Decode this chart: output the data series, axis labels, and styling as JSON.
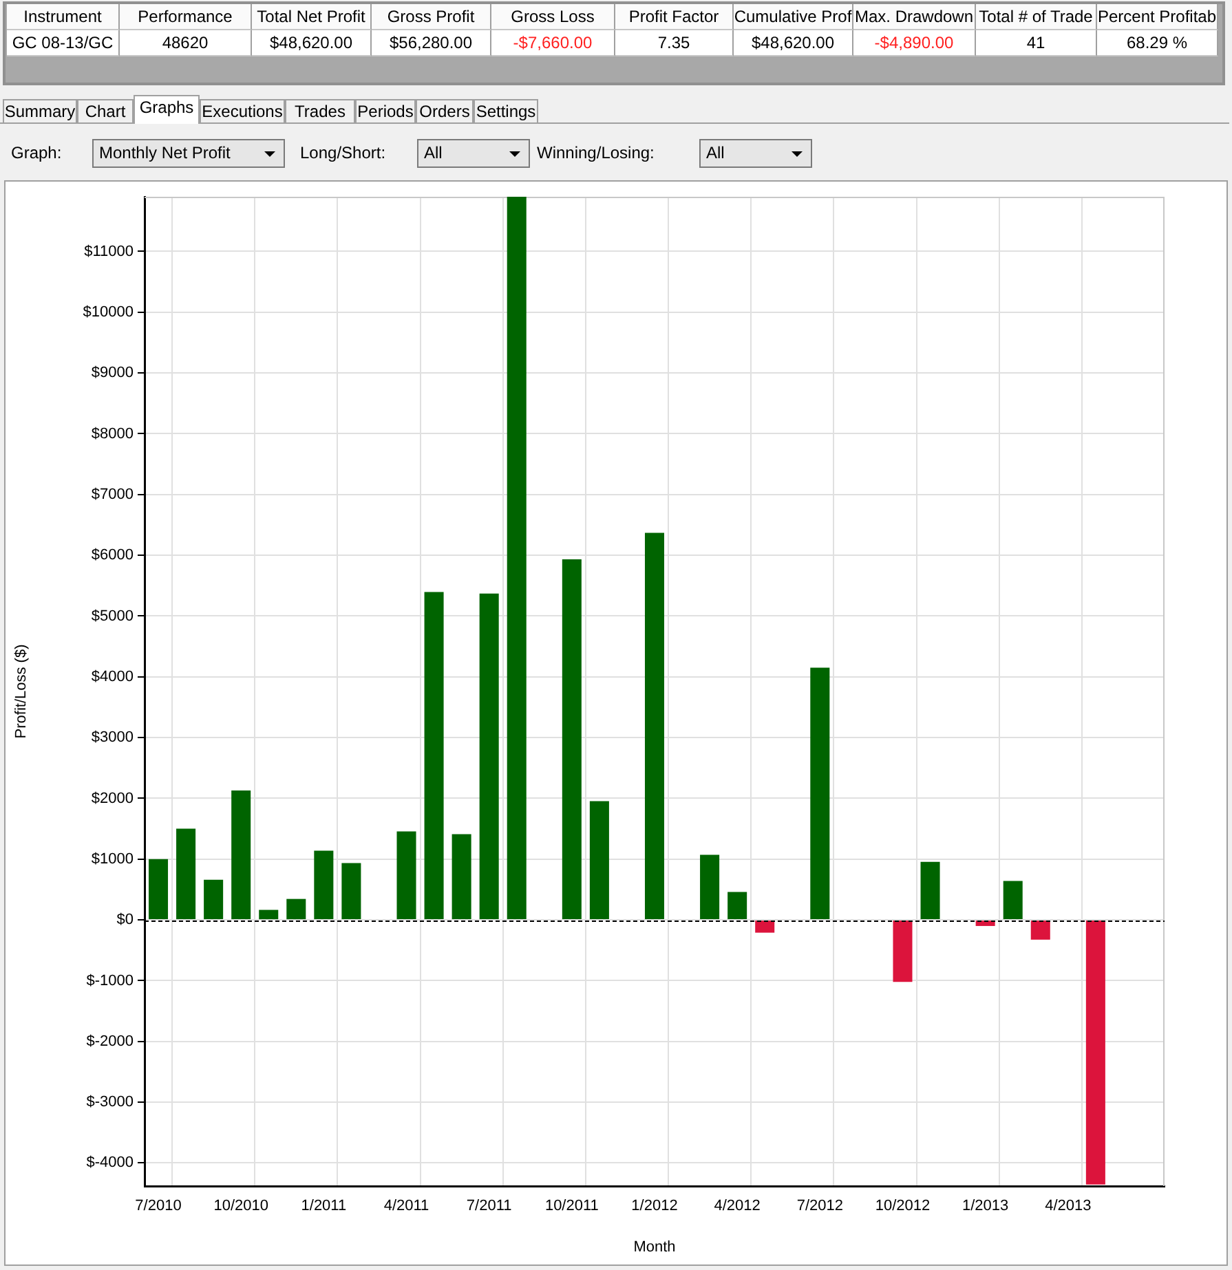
{
  "chart_data": [
    {
      "type": "other",
      "annotations": [
        "Instrument",
        "Performance",
        "Total Net Profit",
        "Gross Profit",
        "Gross Loss",
        "Profit Factor",
        "Cumulative Prof",
        "Max. Drawdown",
        "Total # of Trade",
        "Percent Profitab",
        "GC 08-13/GC",
        "48620",
        "$48,620.00",
        "$56,280.00",
        "-$7,660.00",
        "7.35",
        "$48,620.00",
        "-$4,890.00",
        "41",
        "68.29 %",
        "Summary",
        "Chart",
        "Graphs",
        "Executions",
        "Trades",
        "Periods",
        "Orders",
        "Settings",
        "Graph:",
        "Monthly Net Profit",
        "Long/Short:",
        "All",
        "Winning/Losing:",
        "All"
      ]
    },
    {
      "type": "bar",
      "xlabel": "Month",
      "ylabel": "Profit/Loss ($)",
      "categories": [
        "7/2010",
        null,
        null,
        "10/2010",
        null,
        null,
        "1/2011",
        null,
        null,
        "4/2011",
        null,
        null,
        "7/2011",
        null,
        null,
        "10/2011",
        null,
        null,
        "1/2012",
        null,
        null,
        "4/2012",
        null,
        null,
        "7/2012",
        null,
        null,
        "10/2012",
        null,
        null,
        "1/2013",
        null,
        null,
        "4/2013",
        null,
        null,
        null
      ],
      "values": [
        1000,
        1500,
        660,
        2130,
        165,
        345,
        1140,
        935,
        null,
        1455,
        5395,
        1410,
        5370,
        11900,
        null,
        5935,
        1955,
        null,
        6370,
        null,
        1070,
        460,
        -210,
        null,
        4150,
        null,
        null,
        -1020,
        955,
        null,
        -100,
        640,
        -325,
        null,
        -4355,
        null,
        null
      ],
      "colors": [
        "#006400",
        "#006400",
        "#006400",
        "#006400",
        "#006400",
        "#006400",
        "#006400",
        "#006400",
        "#006400",
        "#006400",
        "#006400",
        "#006400",
        "#006400",
        "#006400",
        "#006400",
        "#006400",
        "#006400",
        "#006400",
        "#006400",
        "#006400",
        "#006400",
        "#006400",
        "#dc143c",
        "#006400",
        "#006400",
        "#006400",
        "#006400",
        "#dc143c",
        "#006400",
        "#006400",
        "#dc143c",
        "#006400",
        "#dc143c",
        "#006400",
        "#dc143c",
        "#006400",
        "#006400"
      ],
      "ylim": [
        -4380,
        11900
      ],
      "yticks": [
        {
          "value": -4000,
          "label": "$-4000"
        },
        {
          "value": -3000,
          "label": "$-3000"
        },
        {
          "value": -2000,
          "label": "$-2000"
        },
        {
          "value": -1000,
          "label": "$-1000"
        },
        {
          "value": 0,
          "label": "$0"
        },
        {
          "value": 1000,
          "label": "$1000"
        },
        {
          "value": 2000,
          "label": "$2000"
        },
        {
          "value": 3000,
          "label": "$3000"
        },
        {
          "value": 4000,
          "label": "$4000"
        },
        {
          "value": 5000,
          "label": "$5000"
        },
        {
          "value": 6000,
          "label": "$6000"
        },
        {
          "value": 7000,
          "label": "$7000"
        },
        {
          "value": 8000,
          "label": "$8000"
        },
        {
          "value": 9000,
          "label": "$9000"
        },
        {
          "value": 10000,
          "label": "$10000"
        },
        {
          "value": 11000,
          "label": "$11000"
        }
      ],
      "grid": true,
      "ref_lines": [
        {
          "axis": "y",
          "value": 0,
          "color": "#000000",
          "line_style": "dashed"
        }
      ]
    }
  ]
}
